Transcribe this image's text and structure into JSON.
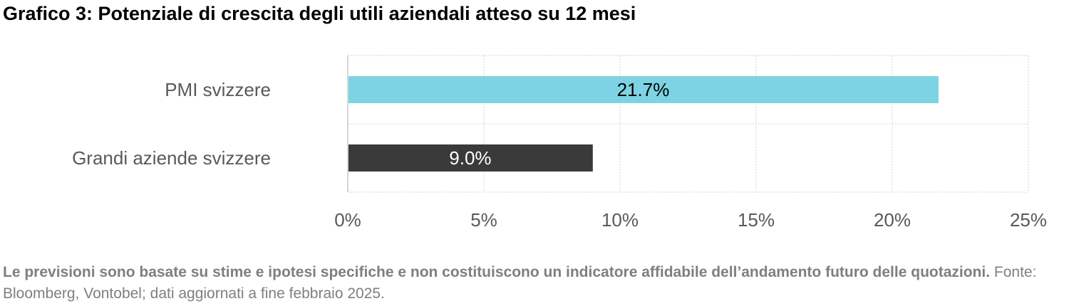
{
  "title": "Grafico 3: Potenziale di crescita degli utili aziendali atteso su 12 mesi",
  "footnote": {
    "bold": "Le previsioni sono basate su stime e ipotesi specifiche e non costituiscono un indicatore affidabile dell’andamento futuro delle quotazioni.",
    "normal": " Fonte: Bloomberg, Vontobel; dati aggiornati a fine febbraio 2025."
  },
  "chart_data": {
    "type": "bar",
    "orientation": "horizontal",
    "categories": [
      "PMI svizzere",
      "Grandi aziende svizzere"
    ],
    "values": [
      21.7,
      9.0
    ],
    "data_labels": [
      "21.7%",
      "9.0%"
    ],
    "bar_colors": [
      "#7dd3e3",
      "#3a3a3a"
    ],
    "label_colors": [
      "#000000",
      "#ffffff"
    ],
    "xlim": [
      0,
      25
    ],
    "xticks": [
      0,
      5,
      10,
      15,
      20,
      25
    ],
    "xtick_labels": [
      "0%",
      "5%",
      "10%",
      "15%",
      "20%",
      "25%"
    ],
    "grid": true,
    "legend": "none"
  }
}
